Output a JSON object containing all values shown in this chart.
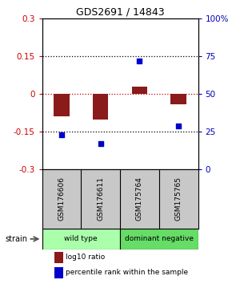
{
  "title": "GDS2691 / 14843",
  "samples": [
    "GSM176606",
    "GSM176611",
    "GSM175764",
    "GSM175765"
  ],
  "log10_ratio": [
    -0.09,
    -0.1,
    0.03,
    -0.04
  ],
  "percentile_rank": [
    23,
    17,
    72,
    29
  ],
  "groups": [
    {
      "label": "wild type",
      "samples": [
        0,
        1
      ],
      "color": "#aaffaa"
    },
    {
      "label": "dominant negative",
      "samples": [
        2,
        3
      ],
      "color": "#66dd66"
    }
  ],
  "ylim": [
    -0.3,
    0.3
  ],
  "y2lim": [
    0,
    100
  ],
  "yticks_left": [
    -0.3,
    -0.15,
    0,
    0.15,
    0.3
  ],
  "yticks_right": [
    0,
    25,
    50,
    75,
    100
  ],
  "bar_color": "#8b1a1a",
  "scatter_color": "#0000cc",
  "zero_line_color": "#cc0000",
  "sample_box_color": "#c8c8c8",
  "strain_label": "strain",
  "background_color": "#ffffff",
  "left_tick_color": "#cc0000",
  "right_tick_color": "#0000bb"
}
